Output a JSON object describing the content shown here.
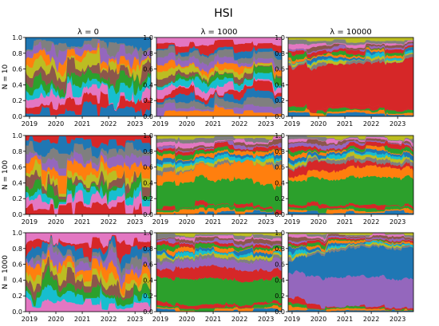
{
  "figure": {
    "title": "HSI"
  },
  "chart_data": {
    "type": "area",
    "stacked": true,
    "normalized": true,
    "title": "HSI",
    "column_titles": [
      "λ = 0",
      "λ = 1000",
      "λ = 10000"
    ],
    "row_titles": [
      "N = 10",
      "N = 100",
      "N = 1000"
    ],
    "x_tick_labels": [
      "2019",
      "2020",
      "2021",
      "2022",
      "2023"
    ],
    "y_tick_labels": [
      "0.0",
      "0.2",
      "0.4",
      "0.6",
      "0.8",
      "1.0"
    ],
    "ylim": [
      0,
      1
    ],
    "xlim": [
      2018.85,
      2023.6
    ],
    "grid": false,
    "legend": "none",
    "palette": [
      "#1f77b4",
      "#ff7f0e",
      "#2ca02c",
      "#d62728",
      "#9467bd",
      "#8c564b",
      "#e377c2",
      "#7f7f7f",
      "#bcbd22",
      "#17becf"
    ],
    "panels": [
      {
        "row": 0,
        "col": 0,
        "lambda": "0",
        "N": "10",
        "description": "portfolio weights switch rapidly between many assets; no persistent allocation",
        "dominant": []
      },
      {
        "row": 0,
        "col": 1,
        "lambda": "1000",
        "N": "10",
        "description": "many assets with moderately frequent rebalancing",
        "dominant": []
      },
      {
        "row": 0,
        "col": 2,
        "lambda": "10000",
        "N": "10",
        "description": "red asset persistent, rising from about 0.5 to about 0.65; many thin bands above",
        "dominant": [
          {
            "color": "#d62728",
            "x": [
              2019,
              2019.3,
              2020,
              2021,
              2022,
              2023,
              2023.5
            ],
            "weight": [
              0.45,
              0.52,
              0.55,
              0.5,
              0.55,
              0.62,
              0.65
            ]
          }
        ]
      },
      {
        "row": 1,
        "col": 0,
        "lambda": "0",
        "N": "100",
        "description": "rapidly changing allocation across many assets",
        "dominant": []
      },
      {
        "row": 1,
        "col": 1,
        "lambda": "1000",
        "N": "100",
        "description": "green and orange assets dominate the middle band",
        "dominant": [
          {
            "color": "#2ca02c",
            "x": [
              2019,
              2020,
              2021,
              2022,
              2023,
              2023.5
            ],
            "weight": [
              0.3,
              0.32,
              0.3,
              0.32,
              0.28,
              0.3
            ]
          },
          {
            "color": "#ff7f0e",
            "x": [
              2019,
              2020,
              2021,
              2022,
              2023,
              2023.5
            ],
            "weight": [
              0.12,
              0.14,
              0.18,
              0.22,
              0.24,
              0.26
            ]
          }
        ]
      },
      {
        "row": 1,
        "col": 2,
        "lambda": "10000",
        "N": "100",
        "description": "large green block in the middle with orange and red bands",
        "dominant": [
          {
            "color": "#2ca02c",
            "x": [
              2019,
              2020,
              2021,
              2022,
              2023,
              2023.5
            ],
            "weight": [
              0.3,
              0.32,
              0.34,
              0.36,
              0.35,
              0.36
            ]
          },
          {
            "color": "#ff7f0e",
            "x": [
              2019,
              2020,
              2021,
              2022,
              2023,
              2023.5
            ],
            "weight": [
              0.05,
              0.1,
              0.12,
              0.14,
              0.12,
              0.12
            ]
          },
          {
            "color": "#d62728",
            "x": [
              2019,
              2020,
              2021,
              2022,
              2023,
              2023.5
            ],
            "weight": [
              0.1,
              0.12,
              0.08,
              0.05,
              0.04,
              0.04
            ]
          }
        ]
      },
      {
        "row": 2,
        "col": 0,
        "lambda": "0",
        "N": "1000",
        "description": "rapidly changing allocation across many assets",
        "dominant": []
      },
      {
        "row": 2,
        "col": 1,
        "lambda": "1000",
        "N": "1000",
        "description": "large green block on top, red and purple lower bands",
        "dominant": [
          {
            "color": "#2ca02c",
            "x": [
              2019,
              2020,
              2021,
              2022,
              2023,
              2023.5
            ],
            "weight": [
              0.3,
              0.34,
              0.33,
              0.3,
              0.28,
              0.3
            ]
          },
          {
            "color": "#d62728",
            "x": [
              2019,
              2020,
              2021,
              2022,
              2023,
              2023.5
            ],
            "weight": [
              0.1,
              0.14,
              0.16,
              0.14,
              0.12,
              0.1
            ]
          },
          {
            "color": "#9467bd",
            "x": [
              2019,
              2020,
              2021,
              2022,
              2023,
              2023.5
            ],
            "weight": [
              0.08,
              0.1,
              0.1,
              0.1,
              0.12,
              0.14
            ]
          }
        ]
      },
      {
        "row": 2,
        "col": 2,
        "lambda": "10000",
        "N": "1000",
        "description": "large purple block on top, blue block at bottom growing to about 0.4",
        "dominant": [
          {
            "color": "#9467bd",
            "x": [
              2019,
              2020,
              2021,
              2022,
              2023,
              2023.5
            ],
            "weight": [
              0.32,
              0.36,
              0.38,
              0.38,
              0.36,
              0.38
            ]
          },
          {
            "color": "#1f77b4",
            "x": [
              2019,
              2020,
              2021,
              2022,
              2023,
              2023.5
            ],
            "weight": [
              0.15,
              0.3,
              0.35,
              0.38,
              0.38,
              0.4
            ]
          }
        ]
      }
    ]
  }
}
